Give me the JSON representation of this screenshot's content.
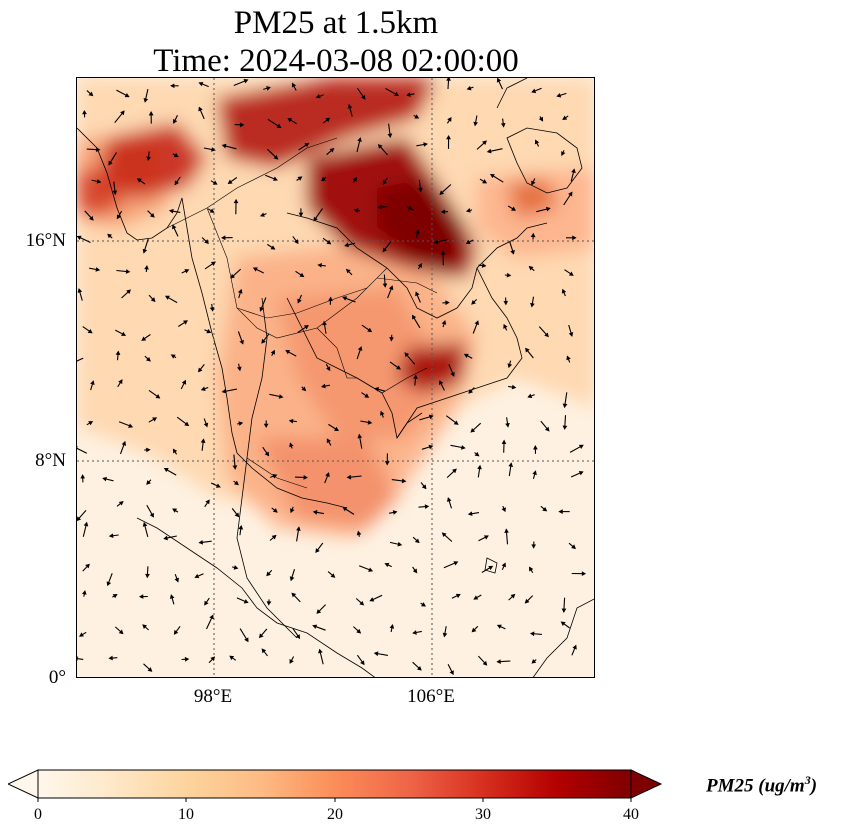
{
  "title": {
    "line1": "PM25 at 1.5km",
    "line2": "Time: 2024-03-08 02:00:00"
  },
  "axes": {
    "lat_labels": [
      "16°N",
      "8°N",
      "0°"
    ],
    "lon_labels": [
      "98°E",
      "106°E"
    ]
  },
  "colorbar": {
    "label": "PM25 (ug/m",
    "label_superscript": "3",
    "label_suffix": ")",
    "ticks": [
      "0",
      "10",
      "20",
      "30",
      "40"
    ],
    "range": [
      0,
      40
    ],
    "extend": "both",
    "colormap": "OrRd",
    "colors": [
      "#fff7ec",
      "#fdd49e",
      "#fc8d59",
      "#d7301f",
      "#7f0000"
    ]
  },
  "map": {
    "variable": "PM25",
    "level": "1.5km",
    "lon_range": [
      93,
      112
    ],
    "lat_range": [
      0,
      22
    ],
    "gridlines": "dotted",
    "wind_vectors": true
  }
}
